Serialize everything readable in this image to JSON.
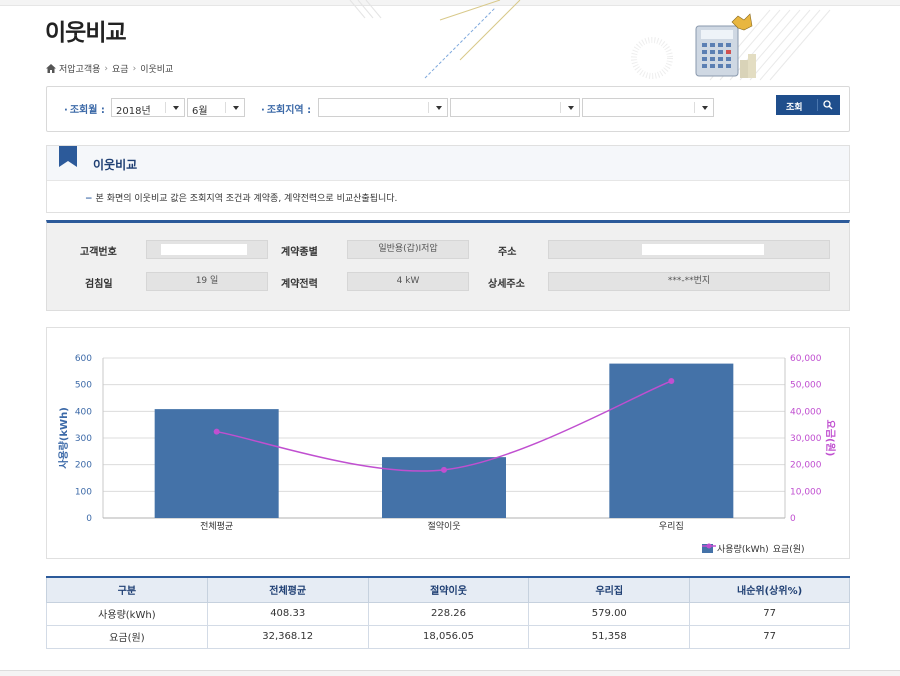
{
  "page": {
    "title": "이웃비교"
  },
  "breadcrumb": {
    "items": [
      "저압고객용",
      "요금",
      "이웃비교"
    ]
  },
  "search": {
    "month_label": "조회월 :",
    "year_value": "2018년",
    "month_value": "6월",
    "region_label": "조회지역 :",
    "region1_value": "",
    "region2_value": "",
    "region3_value": "",
    "button_label": "조회"
  },
  "section": {
    "title": "이웃비교",
    "notice": "본 화면의 이웃비교 값은 조회지역 조건과 계약종, 계약전력으로 비교산출됩니다."
  },
  "info": {
    "customer_no_label": "고객번호",
    "customer_no_value": "",
    "contract_type_label": "계약종별",
    "contract_type_value": "일반용(갑)Ⅰ저압",
    "address_label": "주소",
    "address_value": "",
    "meter_day_label": "검침일",
    "meter_day_value": "19 일",
    "contract_power_label": "계약전력",
    "contract_power_value": "4 kW",
    "detail_address_label": "상세주소",
    "detail_address_value": "***-**번지"
  },
  "chart_data": {
    "type": "bar",
    "categories": [
      "전체평균",
      "절약이웃",
      "우리집"
    ],
    "series": [
      {
        "name": "사용량(kWh)",
        "type": "bar",
        "axis": "left",
        "values": [
          408.33,
          228.26,
          579.0
        ],
        "color": "#4472a8"
      },
      {
        "name": "요금(원)",
        "type": "line",
        "axis": "right",
        "values": [
          32368.12,
          18056.05,
          51358
        ],
        "color": "#c04fd0"
      }
    ],
    "ylabel": "사용량(kWh)",
    "y2label": "요금(원)",
    "ylim": [
      0,
      600
    ],
    "y2lim": [
      0,
      60000
    ],
    "yticks": [
      "0",
      "100",
      "200",
      "300",
      "400",
      "500",
      "600"
    ],
    "y2ticks": [
      "0",
      "10,000",
      "20,000",
      "30,000",
      "40,000",
      "50,000",
      "60,000"
    ],
    "grid": true,
    "legend": "bottom-right"
  },
  "table": {
    "headers": [
      "구분",
      "전체평균",
      "절약이웃",
      "우리집",
      "내순위(상위%)"
    ],
    "rows": [
      [
        "사용량(kWh)",
        "408.33",
        "228.26",
        "579.00",
        "77"
      ],
      [
        "요금(원)",
        "32,368.12",
        "18,056.05",
        "51,358",
        "77"
      ]
    ]
  },
  "colors": {
    "accent": "#1f4e8c",
    "bar": "#4472a8",
    "line": "#c04fd0",
    "label": "#3d6aa8"
  }
}
